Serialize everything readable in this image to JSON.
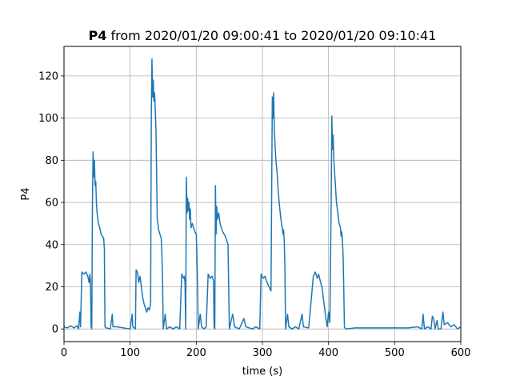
{
  "chart_data": {
    "type": "line",
    "title_bold": "P4",
    "title_rest": " from 2020/01/20 09:00:41 to 2020/01/20 09:10:41",
    "xlabel": "time (s)",
    "ylabel": "P4",
    "xlim": [
      0,
      600
    ],
    "ylim": [
      -6,
      134
    ],
    "xticks": [
      0,
      100,
      200,
      300,
      400,
      500,
      600
    ],
    "yticks": [
      0,
      20,
      40,
      60,
      80,
      100,
      120
    ],
    "grid": true,
    "legend": "none",
    "colors": {
      "line": "#1f77b4",
      "grid": "#b0b0b0"
    },
    "series": [
      {
        "values": [
          [
            0,
            1
          ],
          [
            5,
            0.5
          ],
          [
            10,
            1.5
          ],
          [
            15,
            0.5
          ],
          [
            20,
            1.5
          ],
          [
            22,
            0
          ],
          [
            24,
            8
          ],
          [
            25,
            1
          ],
          [
            27,
            27
          ],
          [
            30,
            26
          ],
          [
            33,
            27
          ],
          [
            36,
            25
          ],
          [
            38,
            22
          ],
          [
            39,
            26
          ],
          [
            40,
            23
          ],
          [
            41,
            1
          ],
          [
            42,
            0
          ],
          [
            43,
            60
          ],
          [
            44,
            84
          ],
          [
            45,
            72
          ],
          [
            46,
            80
          ],
          [
            47,
            68
          ],
          [
            48,
            70
          ],
          [
            49,
            60
          ],
          [
            50,
            55
          ],
          [
            52,
            50
          ],
          [
            54,
            48
          ],
          [
            56,
            45
          ],
          [
            58,
            44
          ],
          [
            60,
            43
          ],
          [
            61,
            38
          ],
          [
            62,
            1
          ],
          [
            64,
            0.5
          ],
          [
            70,
            0
          ],
          [
            73,
            7
          ],
          [
            74,
            1
          ],
          [
            80,
            1
          ],
          [
            90,
            0.5
          ],
          [
            100,
            0
          ],
          [
            103,
            7
          ],
          [
            104,
            1
          ],
          [
            108,
            0
          ],
          [
            109,
            28
          ],
          [
            111,
            27
          ],
          [
            113,
            22
          ],
          [
            115,
            25
          ],
          [
            117,
            20
          ],
          [
            119,
            15
          ],
          [
            121,
            12
          ],
          [
            123,
            10
          ],
          [
            125,
            8
          ],
          [
            127,
            10
          ],
          [
            129,
            9
          ],
          [
            131,
            12
          ],
          [
            132,
            100
          ],
          [
            133,
            128
          ],
          [
            134,
            110
          ],
          [
            135,
            118
          ],
          [
            136,
            108
          ],
          [
            137,
            112
          ],
          [
            138,
            104
          ],
          [
            139,
            95
          ],
          [
            140,
            75
          ],
          [
            141,
            52
          ],
          [
            142,
            50
          ],
          [
            143,
            47
          ],
          [
            145,
            45
          ],
          [
            147,
            43
          ],
          [
            148,
            35
          ],
          [
            149,
            25
          ],
          [
            150,
            0
          ],
          [
            153,
            7
          ],
          [
            155,
            0
          ],
          [
            160,
            1
          ],
          [
            165,
            0
          ],
          [
            170,
            1
          ],
          [
            175,
            0
          ],
          [
            178,
            26
          ],
          [
            181,
            24
          ],
          [
            182,
            25
          ],
          [
            183,
            22
          ],
          [
            184,
            0
          ],
          [
            185,
            72
          ],
          [
            186,
            55
          ],
          [
            187,
            62
          ],
          [
            188,
            56
          ],
          [
            189,
            60
          ],
          [
            190,
            52
          ],
          [
            191,
            57
          ],
          [
            192,
            48
          ],
          [
            194,
            50
          ],
          [
            196,
            48
          ],
          [
            198,
            46
          ],
          [
            200,
            45
          ],
          [
            201,
            35
          ],
          [
            202,
            20
          ],
          [
            203,
            0
          ],
          [
            206,
            7
          ],
          [
            208,
            1
          ],
          [
            212,
            0
          ],
          [
            215,
            1
          ],
          [
            218,
            26
          ],
          [
            221,
            24
          ],
          [
            224,
            25
          ],
          [
            226,
            23
          ],
          [
            227,
            1
          ],
          [
            228,
            0
          ],
          [
            229,
            68
          ],
          [
            230,
            45
          ],
          [
            231,
            58
          ],
          [
            232,
            52
          ],
          [
            234,
            55
          ],
          [
            236,
            50
          ],
          [
            238,
            48
          ],
          [
            240,
            46
          ],
          [
            242,
            45
          ],
          [
            244,
            44
          ],
          [
            246,
            42
          ],
          [
            248,
            40
          ],
          [
            249,
            20
          ],
          [
            250,
            0
          ],
          [
            255,
            7
          ],
          [
            258,
            1
          ],
          [
            265,
            0
          ],
          [
            272,
            5
          ],
          [
            275,
            1
          ],
          [
            285,
            0
          ],
          [
            290,
            1
          ],
          [
            296,
            0
          ],
          [
            298,
            26
          ],
          [
            301,
            24
          ],
          [
            304,
            25
          ],
          [
            307,
            22
          ],
          [
            310,
            20
          ],
          [
            313,
            18
          ],
          [
            315,
            110
          ],
          [
            316,
            100
          ],
          [
            317,
            112
          ],
          [
            318,
            95
          ],
          [
            319,
            88
          ],
          [
            320,
            82
          ],
          [
            321,
            78
          ],
          [
            322,
            75
          ],
          [
            324,
            65
          ],
          [
            326,
            58
          ],
          [
            328,
            52
          ],
          [
            330,
            48
          ],
          [
            331,
            45
          ],
          [
            332,
            47
          ],
          [
            333,
            42
          ],
          [
            334,
            30
          ],
          [
            335,
            0
          ],
          [
            338,
            7
          ],
          [
            340,
            1
          ],
          [
            345,
            0
          ],
          [
            350,
            1
          ],
          [
            355,
            0
          ],
          [
            360,
            7
          ],
          [
            362,
            1
          ],
          [
            370,
            0.5
          ],
          [
            377,
            25
          ],
          [
            380,
            27
          ],
          [
            383,
            24
          ],
          [
            385,
            26
          ],
          [
            388,
            22
          ],
          [
            390,
            20
          ],
          [
            392,
            15
          ],
          [
            394,
            10
          ],
          [
            396,
            5
          ],
          [
            398,
            1
          ],
          [
            400,
            8
          ],
          [
            402,
            3
          ],
          [
            404,
            60
          ],
          [
            405,
            101
          ],
          [
            406,
            85
          ],
          [
            407,
            92
          ],
          [
            408,
            80
          ],
          [
            410,
            70
          ],
          [
            412,
            60
          ],
          [
            414,
            55
          ],
          [
            416,
            50
          ],
          [
            418,
            48
          ],
          [
            419,
            44
          ],
          [
            420,
            46
          ],
          [
            421,
            42
          ],
          [
            422,
            35
          ],
          [
            423,
            20
          ],
          [
            424,
            1
          ],
          [
            426,
            0
          ],
          [
            440,
            0.5
          ],
          [
            460,
            0.5
          ],
          [
            480,
            0.5
          ],
          [
            500,
            0.5
          ],
          [
            520,
            0.5
          ],
          [
            535,
            1
          ],
          [
            541,
            0
          ],
          [
            543,
            7
          ],
          [
            545,
            0
          ],
          [
            550,
            1
          ],
          [
            555,
            0
          ],
          [
            557,
            6
          ],
          [
            559,
            5
          ],
          [
            561,
            0
          ],
          [
            564,
            4
          ],
          [
            566,
            0
          ],
          [
            570,
            0
          ],
          [
            573,
            8
          ],
          [
            575,
            2
          ],
          [
            580,
            3
          ],
          [
            585,
            1
          ],
          [
            590,
            2
          ],
          [
            595,
            0
          ],
          [
            600,
            1
          ]
        ]
      }
    ]
  }
}
